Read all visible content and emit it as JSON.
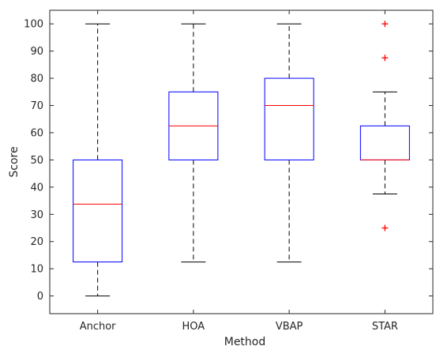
{
  "chart_data": {
    "type": "box",
    "title": "",
    "xlabel": "Method",
    "ylabel": "Score",
    "ylim": [
      -6.5,
      105
    ],
    "yticks": [
      0,
      10,
      20,
      30,
      40,
      50,
      60,
      70,
      80,
      90,
      100
    ],
    "grid": false,
    "categories": [
      "Anchor",
      "HOA",
      "VBAP",
      "STAR"
    ],
    "boxes": [
      {
        "category": "Anchor",
        "whisker_low": 0,
        "q1": 12.5,
        "median": 33.75,
        "q3": 50,
        "whisker_high": 100,
        "outliers": []
      },
      {
        "category": "HOA",
        "whisker_low": 12.5,
        "q1": 50,
        "median": 62.5,
        "q3": 75,
        "whisker_high": 100,
        "outliers": []
      },
      {
        "category": "VBAP",
        "whisker_low": 12.5,
        "q1": 50,
        "median": 70,
        "q3": 80,
        "whisker_high": 100,
        "outliers": []
      },
      {
        "category": "STAR",
        "whisker_low": 37.5,
        "q1": 50,
        "median": 50,
        "q3": 62.5,
        "whisker_high": 75,
        "outliers": [
          100,
          87.5,
          25
        ]
      }
    ],
    "colors": {
      "box": "#0000ff",
      "median": "#ff0000",
      "whisker": "#000000",
      "outlier": "#ff0000"
    }
  }
}
